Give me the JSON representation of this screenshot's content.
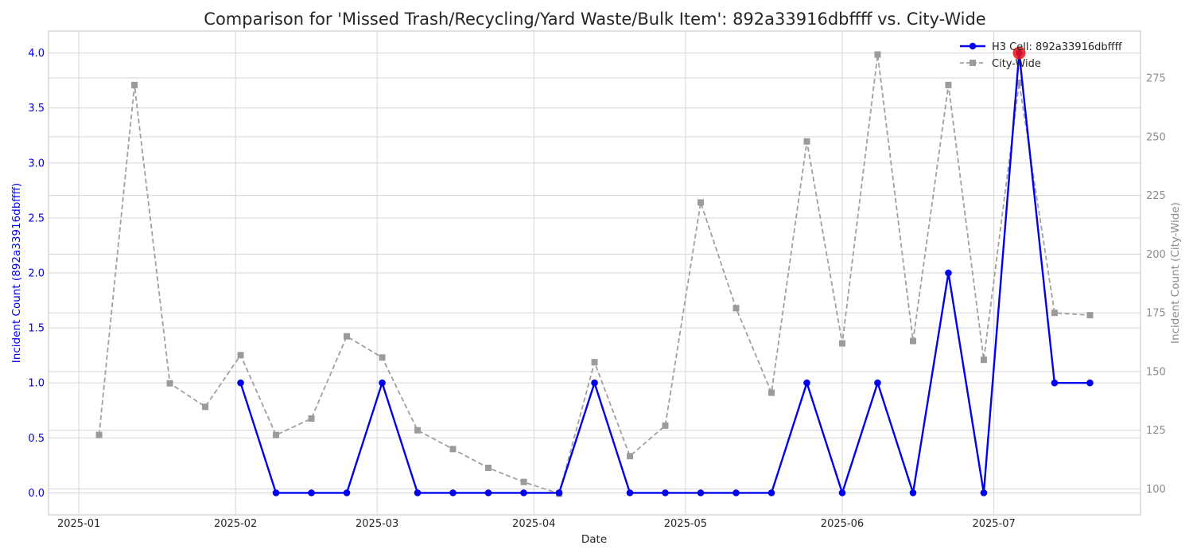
{
  "chart_data": {
    "type": "line",
    "title": "Comparison for 'Missed Trash/Recycling/Yard Waste/Bulk Item': 892a33916dbffff vs. City-Wide",
    "xlabel": "Date",
    "ylabel_left": "Incident Count (892a33916dbffff)",
    "ylabel_right": "Incident Count (City-Wide)",
    "ylim_left": [
      -0.2,
      4.2
    ],
    "ylim_right": [
      89,
      295
    ],
    "x_ticks": [
      "2025-01",
      "2025-02",
      "2025-03",
      "2025-04",
      "2025-05",
      "2025-06",
      "2025-07"
    ],
    "x_tick_dates": [
      "2025-01-01",
      "2025-02-01",
      "2025-03-01",
      "2025-04-01",
      "2025-05-01",
      "2025-06-01",
      "2025-07-01"
    ],
    "y_ticks_left": [
      "0.0",
      "0.5",
      "1.0",
      "1.5",
      "2.0",
      "2.5",
      "3.0",
      "3.5",
      "4.0"
    ],
    "y_ticks_left_values": [
      0,
      0.5,
      1,
      1.5,
      2,
      2.5,
      3,
      3.5,
      4
    ],
    "y_ticks_right": [
      "100",
      "125",
      "150",
      "175",
      "200",
      "225",
      "250",
      "275"
    ],
    "y_ticks_right_values": [
      100,
      125,
      150,
      175,
      200,
      225,
      250,
      275
    ],
    "xlim": [
      "2024-12-26",
      "2025-07-30"
    ],
    "grid": true,
    "legend_position": "top-right",
    "series": [
      {
        "name": "H3 Cell: 892a33916dbffff",
        "axis": "left",
        "color": "#0000ee",
        "style": "solid",
        "marker": "circle",
        "x": [
          "2025-02-02",
          "2025-02-09",
          "2025-02-16",
          "2025-02-23",
          "2025-03-02",
          "2025-03-09",
          "2025-03-16",
          "2025-03-23",
          "2025-03-30",
          "2025-04-06",
          "2025-04-13",
          "2025-04-20",
          "2025-04-27",
          "2025-05-04",
          "2025-05-11",
          "2025-05-18",
          "2025-05-25",
          "2025-06-01",
          "2025-06-08",
          "2025-06-15",
          "2025-06-22",
          "2025-06-29",
          "2025-07-06",
          "2025-07-13",
          "2025-07-20"
        ],
        "values": [
          1,
          0,
          0,
          0,
          1,
          0,
          0,
          0,
          0,
          0,
          1,
          0,
          0,
          0,
          0,
          0,
          1,
          0,
          1,
          0,
          2,
          0,
          4,
          1,
          1
        ]
      },
      {
        "name": "City-Wide",
        "axis": "right",
        "color": "#a0a0a0",
        "style": "dashed",
        "marker": "square",
        "x": [
          "2025-01-05",
          "2025-01-12",
          "2025-01-19",
          "2025-01-26",
          "2025-02-02",
          "2025-02-09",
          "2025-02-16",
          "2025-02-23",
          "2025-03-02",
          "2025-03-09",
          "2025-03-16",
          "2025-03-23",
          "2025-03-30",
          "2025-04-06",
          "2025-04-13",
          "2025-04-20",
          "2025-04-27",
          "2025-05-04",
          "2025-05-11",
          "2025-05-18",
          "2025-05-25",
          "2025-06-01",
          "2025-06-08",
          "2025-06-15",
          "2025-06-22",
          "2025-06-29",
          "2025-07-06",
          "2025-07-13",
          "2025-07-20"
        ],
        "values": [
          123,
          272,
          145,
          135,
          157,
          123,
          130,
          165,
          156,
          125,
          117,
          109,
          103,
          98,
          154,
          114,
          127,
          222,
          177,
          141,
          248,
          162,
          285,
          163,
          272,
          155,
          273,
          175,
          174
        ]
      }
    ],
    "highlight": {
      "x": "2025-07-06",
      "value": 4,
      "axis": "left",
      "color": "#ee1111"
    }
  }
}
